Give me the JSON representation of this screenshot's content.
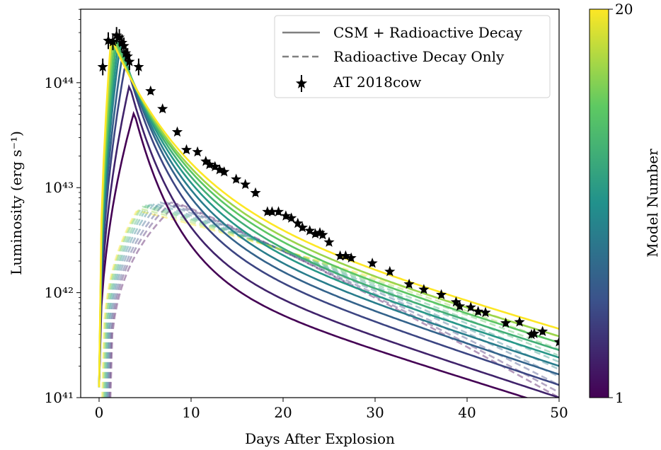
{
  "chart_data": {
    "type": "line",
    "xlabel": "Days After Explosion",
    "ylabel": "Luminosity (erg s⁻¹)",
    "xlim": [
      -2,
      50
    ],
    "ylim_log10": [
      41,
      44.7
    ],
    "y_scale": "log",
    "x_ticks": [
      0,
      10,
      20,
      30,
      40,
      50
    ],
    "y_ticks": [
      {
        "value": 41,
        "label": "10⁴¹"
      },
      {
        "value": 42,
        "label": "10⁴²"
      },
      {
        "value": 43,
        "label": "10⁴³"
      },
      {
        "value": 44,
        "label": "10⁴⁴"
      }
    ],
    "grid": false,
    "legend_position": "top-right",
    "legend": [
      {
        "label": "CSM + Radioactive Decay",
        "style": "solid"
      },
      {
        "label": "Radioactive Decay Only",
        "style": "dashed"
      },
      {
        "label": "AT 2018cow",
        "style": "star-errorbar"
      }
    ],
    "colorbar": {
      "label": "Model Number",
      "min_label": "1",
      "max_label": "20",
      "colormap": [
        "#440154",
        "#3b528b",
        "#21918c",
        "#5ec962",
        "#fde725"
      ]
    },
    "models_csm_radioactive": [
      {
        "model": 1,
        "peak_day": 3.8,
        "peak_log10": 43.72,
        "late_log10": 40.9,
        "tail_tau": 5.0
      },
      {
        "model": 3,
        "peak_day": 3.3,
        "peak_log10": 43.98,
        "late_log10": 41.0,
        "tail_tau": 5.4
      },
      {
        "model": 5,
        "peak_day": 2.9,
        "peak_log10": 44.2,
        "late_log10": 41.12,
        "tail_tau": 5.8
      },
      {
        "model": 7,
        "peak_day": 2.6,
        "peak_log10": 44.3,
        "late_log10": 41.22,
        "tail_tau": 6.2
      },
      {
        "model": 9,
        "peak_day": 2.3,
        "peak_log10": 44.36,
        "late_log10": 41.3,
        "tail_tau": 6.6
      },
      {
        "model": 11,
        "peak_day": 2.1,
        "peak_log10": 44.39,
        "late_log10": 41.38,
        "tail_tau": 7.0
      },
      {
        "model": 13,
        "peak_day": 1.9,
        "peak_log10": 44.41,
        "late_log10": 41.45,
        "tail_tau": 7.4
      },
      {
        "model": 15,
        "peak_day": 1.7,
        "peak_log10": 44.42,
        "late_log10": 41.52,
        "tail_tau": 7.8
      },
      {
        "model": 17,
        "peak_day": 1.5,
        "peak_log10": 44.42,
        "late_log10": 41.58,
        "tail_tau": 8.2
      },
      {
        "model": 20,
        "peak_day": 1.3,
        "peak_log10": 44.43,
        "late_log10": 41.65,
        "tail_tau": 8.6
      }
    ],
    "models_radioactive_only": [
      {
        "model": 1,
        "start_day": 1.2,
        "peak_day": 8.5,
        "peak_log10": 42.85,
        "late_log10": 41.0
      },
      {
        "model": 3,
        "start_day": 1.1,
        "peak_day": 7.8,
        "peak_log10": 42.86,
        "late_log10": 41.05
      },
      {
        "model": 5,
        "start_day": 1.0,
        "peak_day": 7.2,
        "peak_log10": 42.86,
        "late_log10": 41.12
      },
      {
        "model": 7,
        "start_day": 0.9,
        "peak_day": 6.6,
        "peak_log10": 42.86,
        "late_log10": 41.2
      },
      {
        "model": 9,
        "start_day": 0.8,
        "peak_day": 6.0,
        "peak_log10": 42.85,
        "late_log10": 41.27
      },
      {
        "model": 11,
        "start_day": 0.7,
        "peak_day": 5.5,
        "peak_log10": 42.84,
        "late_log10": 41.34
      },
      {
        "model": 13,
        "start_day": 0.6,
        "peak_day": 5.1,
        "peak_log10": 42.83,
        "late_log10": 41.4
      },
      {
        "model": 15,
        "start_day": 0.5,
        "peak_day": 4.7,
        "peak_log10": 42.82,
        "late_log10": 41.46
      },
      {
        "model": 17,
        "start_day": 0.4,
        "peak_day": 4.4,
        "peak_log10": 42.8,
        "late_log10": 41.52
      },
      {
        "model": 20,
        "start_day": 0.3,
        "peak_day": 4.1,
        "peak_log10": 42.78,
        "late_log10": 41.58
      }
    ],
    "observations_AT2018cow": {
      "x": [
        0.4,
        1.0,
        1.5,
        1.9,
        2.2,
        2.5,
        2.7,
        2.9,
        3.1,
        3.3,
        4.3,
        5.6,
        6.9,
        8.5,
        9.5,
        10.7,
        11.6,
        12.0,
        12.6,
        13.1,
        13.6,
        14.9,
        15.9,
        17.0,
        18.3,
        18.8,
        19.5,
        20.3,
        20.9,
        21.6,
        22.1,
        22.9,
        23.5,
        24.0,
        24.3,
        25.0,
        26.2,
        26.8,
        27.4,
        29.7,
        31.6,
        33.7,
        35.3,
        37.2,
        38.8,
        39.2,
        40.4,
        41.2,
        42.0,
        44.2,
        45.7,
        47.0,
        47.3,
        48.2,
        50.0
      ],
      "y_log10": [
        44.15,
        44.4,
        44.39,
        44.45,
        44.43,
        44.38,
        44.35,
        44.28,
        44.25,
        44.2,
        44.15,
        43.92,
        43.75,
        43.53,
        43.36,
        43.34,
        43.25,
        43.22,
        43.2,
        43.17,
        43.15,
        43.08,
        43.03,
        42.95,
        42.77,
        42.77,
        42.77,
        42.73,
        42.71,
        42.66,
        42.62,
        42.59,
        42.56,
        42.57,
        42.55,
        42.48,
        42.35,
        42.35,
        42.33,
        42.28,
        42.2,
        42.08,
        42.03,
        41.98,
        41.91,
        41.87,
        41.86,
        41.82,
        41.81,
        41.71,
        41.72,
        41.6,
        41.61,
        41.63,
        41.53
      ]
    }
  }
}
